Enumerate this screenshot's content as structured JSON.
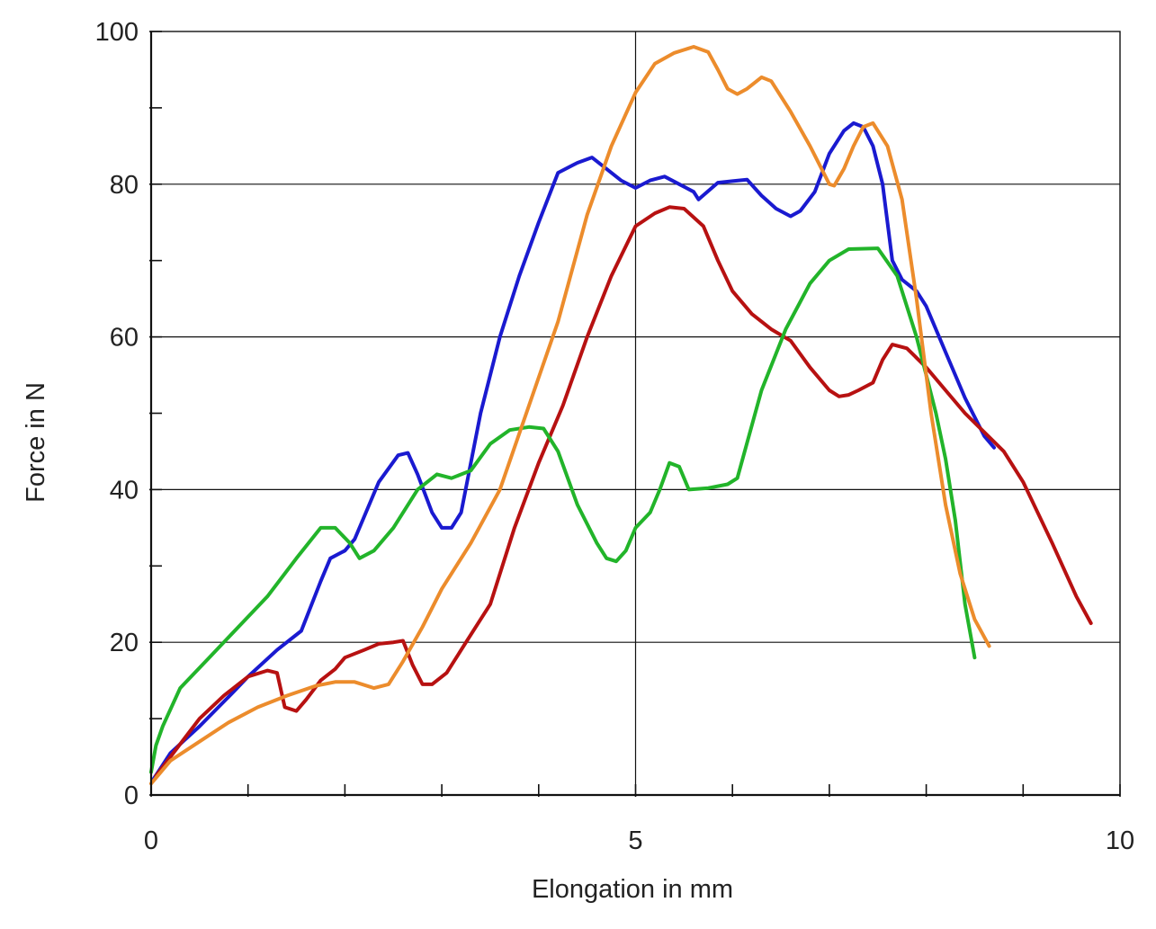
{
  "chart_data": {
    "type": "line",
    "title": "",
    "xlabel": "Elongation in mm",
    "ylabel": "Force in N",
    "xlim": [
      0,
      10
    ],
    "ylim": [
      0,
      100
    ],
    "x_ticks": [
      0,
      5,
      10
    ],
    "x_tick_labels": [
      "0",
      "5",
      "10"
    ],
    "x_minor_ticks": [
      1,
      2,
      3,
      4,
      6,
      7,
      8,
      9
    ],
    "y_ticks": [
      0,
      20,
      40,
      60,
      80,
      100
    ],
    "y_tick_labels": [
      "0",
      "20",
      "40",
      "60",
      "80",
      "100"
    ],
    "y_minor_ticks": [
      10,
      30,
      50,
      70,
      90
    ],
    "grid": true,
    "legend": "none",
    "series": [
      {
        "color": "#1a1ad0",
        "points": [
          [
            0.02,
            2
          ],
          [
            0.2,
            5.5
          ],
          [
            0.5,
            9
          ],
          [
            0.85,
            13.5
          ],
          [
            1.0,
            15.5
          ],
          [
            1.3,
            19
          ],
          [
            1.55,
            21.5
          ],
          [
            1.75,
            28
          ],
          [
            1.85,
            31
          ],
          [
            2.0,
            32
          ],
          [
            2.1,
            33.5
          ],
          [
            2.35,
            41
          ],
          [
            2.55,
            44.5
          ],
          [
            2.65,
            44.8
          ],
          [
            2.75,
            42
          ],
          [
            2.9,
            37
          ],
          [
            3.0,
            35
          ],
          [
            3.1,
            35
          ],
          [
            3.2,
            37
          ],
          [
            3.4,
            50
          ],
          [
            3.6,
            60
          ],
          [
            3.8,
            68
          ],
          [
            4.0,
            75
          ],
          [
            4.2,
            81.5
          ],
          [
            4.4,
            82.8
          ],
          [
            4.55,
            83.5
          ],
          [
            4.7,
            82
          ],
          [
            4.85,
            80.5
          ],
          [
            5.0,
            79.5
          ],
          [
            5.15,
            80.5
          ],
          [
            5.3,
            81
          ],
          [
            5.45,
            80
          ],
          [
            5.6,
            79
          ],
          [
            5.65,
            78
          ],
          [
            5.85,
            80.2
          ],
          [
            6.0,
            80.4
          ],
          [
            6.15,
            80.6
          ],
          [
            6.3,
            78.5
          ],
          [
            6.45,
            76.8
          ],
          [
            6.6,
            75.8
          ],
          [
            6.7,
            76.5
          ],
          [
            6.85,
            79
          ],
          [
            7.0,
            84
          ],
          [
            7.15,
            87
          ],
          [
            7.25,
            88
          ],
          [
            7.35,
            87.5
          ],
          [
            7.45,
            85
          ],
          [
            7.55,
            80
          ],
          [
            7.65,
            70
          ],
          [
            7.75,
            67.5
          ],
          [
            7.9,
            66
          ],
          [
            8.0,
            64
          ],
          [
            8.2,
            58
          ],
          [
            8.4,
            52
          ],
          [
            8.6,
            47
          ],
          [
            8.7,
            45.5
          ]
        ]
      },
      {
        "color": "#b71111",
        "points": [
          [
            0.05,
            2.5
          ],
          [
            0.2,
            5
          ],
          [
            0.5,
            10
          ],
          [
            0.75,
            13
          ],
          [
            1.0,
            15.5
          ],
          [
            1.2,
            16.3
          ],
          [
            1.3,
            16
          ],
          [
            1.38,
            11.5
          ],
          [
            1.5,
            11
          ],
          [
            1.6,
            12.5
          ],
          [
            1.75,
            15
          ],
          [
            1.9,
            16.5
          ],
          [
            2.0,
            18
          ],
          [
            2.2,
            19
          ],
          [
            2.35,
            19.8
          ],
          [
            2.5,
            20
          ],
          [
            2.6,
            20.2
          ],
          [
            2.7,
            17
          ],
          [
            2.8,
            14.5
          ],
          [
            2.9,
            14.5
          ],
          [
            3.05,
            16
          ],
          [
            3.25,
            20
          ],
          [
            3.5,
            25
          ],
          [
            3.75,
            35
          ],
          [
            4.0,
            43.5
          ],
          [
            4.25,
            51
          ],
          [
            4.5,
            60
          ],
          [
            4.75,
            68
          ],
          [
            5.0,
            74.5
          ],
          [
            5.2,
            76.2
          ],
          [
            5.35,
            77
          ],
          [
            5.5,
            76.8
          ],
          [
            5.7,
            74.5
          ],
          [
            5.85,
            70
          ],
          [
            6.0,
            66
          ],
          [
            6.2,
            63
          ],
          [
            6.4,
            61
          ],
          [
            6.6,
            59.5
          ],
          [
            6.8,
            56
          ],
          [
            7.0,
            53
          ],
          [
            7.1,
            52.2
          ],
          [
            7.2,
            52.4
          ],
          [
            7.3,
            53
          ],
          [
            7.45,
            54
          ],
          [
            7.55,
            57
          ],
          [
            7.65,
            59
          ],
          [
            7.8,
            58.5
          ],
          [
            8.0,
            56
          ],
          [
            8.2,
            53
          ],
          [
            8.4,
            50
          ],
          [
            8.6,
            47.5
          ],
          [
            8.8,
            45
          ],
          [
            9.0,
            41
          ],
          [
            9.3,
            33
          ],
          [
            9.55,
            26
          ],
          [
            9.7,
            22.5
          ]
        ]
      },
      {
        "color": "#22b42a",
        "points": [
          [
            0.0,
            3
          ],
          [
            0.05,
            6.5
          ],
          [
            0.12,
            9
          ],
          [
            0.3,
            14
          ],
          [
            0.6,
            18
          ],
          [
            0.9,
            22
          ],
          [
            1.2,
            26
          ],
          [
            1.5,
            31
          ],
          [
            1.75,
            35
          ],
          [
            1.9,
            35
          ],
          [
            2.05,
            33
          ],
          [
            2.15,
            31
          ],
          [
            2.3,
            32
          ],
          [
            2.5,
            35
          ],
          [
            2.75,
            40
          ],
          [
            2.95,
            42
          ],
          [
            3.1,
            41.5
          ],
          [
            3.3,
            42.5
          ],
          [
            3.5,
            46
          ],
          [
            3.7,
            47.8
          ],
          [
            3.9,
            48.2
          ],
          [
            4.05,
            48
          ],
          [
            4.2,
            45
          ],
          [
            4.4,
            38
          ],
          [
            4.6,
            33
          ],
          [
            4.7,
            31
          ],
          [
            4.8,
            30.6
          ],
          [
            4.9,
            32
          ],
          [
            5.0,
            35
          ],
          [
            5.15,
            37
          ],
          [
            5.25,
            40
          ],
          [
            5.35,
            43.5
          ],
          [
            5.45,
            43
          ],
          [
            5.55,
            40
          ],
          [
            5.75,
            40.2
          ],
          [
            5.95,
            40.7
          ],
          [
            6.05,
            41.5
          ],
          [
            6.3,
            53
          ],
          [
            6.55,
            61
          ],
          [
            6.8,
            67
          ],
          [
            7.0,
            70
          ],
          [
            7.2,
            71.5
          ],
          [
            7.5,
            71.6
          ],
          [
            7.7,
            68
          ],
          [
            7.9,
            60
          ],
          [
            8.1,
            50
          ],
          [
            8.2,
            44
          ],
          [
            8.3,
            36
          ],
          [
            8.4,
            25
          ],
          [
            8.5,
            18
          ]
        ]
      },
      {
        "color": "#ec8c2c",
        "points": [
          [
            0.0,
            1.5
          ],
          [
            0.2,
            4.5
          ],
          [
            0.5,
            7
          ],
          [
            0.8,
            9.5
          ],
          [
            1.1,
            11.5
          ],
          [
            1.4,
            13
          ],
          [
            1.7,
            14.3
          ],
          [
            1.9,
            14.8
          ],
          [
            2.1,
            14.8
          ],
          [
            2.3,
            14
          ],
          [
            2.45,
            14.5
          ],
          [
            2.6,
            17.5
          ],
          [
            2.8,
            22
          ],
          [
            3.0,
            27
          ],
          [
            3.3,
            33
          ],
          [
            3.6,
            40
          ],
          [
            3.9,
            51
          ],
          [
            4.2,
            62
          ],
          [
            4.5,
            76
          ],
          [
            4.75,
            85
          ],
          [
            5.0,
            92
          ],
          [
            5.2,
            95.8
          ],
          [
            5.4,
            97.2
          ],
          [
            5.6,
            98
          ],
          [
            5.75,
            97.3
          ],
          [
            5.85,
            95
          ],
          [
            5.95,
            92.5
          ],
          [
            6.05,
            91.8
          ],
          [
            6.15,
            92.5
          ],
          [
            6.3,
            94
          ],
          [
            6.4,
            93.5
          ],
          [
            6.6,
            89.5
          ],
          [
            6.8,
            85
          ],
          [
            7.0,
            80
          ],
          [
            7.05,
            79.8
          ],
          [
            7.15,
            82
          ],
          [
            7.25,
            85
          ],
          [
            7.35,
            87.5
          ],
          [
            7.45,
            88
          ],
          [
            7.6,
            85
          ],
          [
            7.75,
            78
          ],
          [
            7.9,
            65
          ],
          [
            8.05,
            50
          ],
          [
            8.2,
            38
          ],
          [
            8.35,
            29
          ],
          [
            8.5,
            23
          ],
          [
            8.65,
            19.5
          ]
        ]
      }
    ]
  }
}
